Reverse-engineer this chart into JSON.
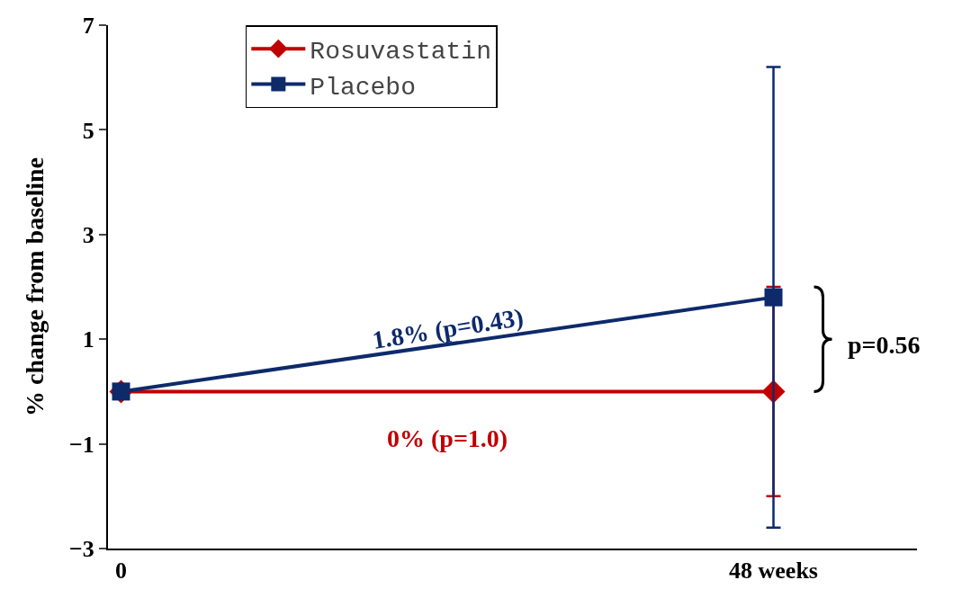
{
  "chart_data": {
    "type": "line",
    "ylabel": "% change from baseline",
    "categories": [
      "0",
      "48 weeks"
    ],
    "series": [
      {
        "name": "Rosuvastatin",
        "color": "#c00000",
        "marker": "diamond",
        "values": [
          0,
          0
        ],
        "errors": [
          null,
          [
            -2,
            2
          ]
        ]
      },
      {
        "name": "Placebo",
        "color": "#0d2a6b",
        "marker": "square",
        "values": [
          0,
          1.8
        ],
        "errors": [
          null,
          [
            -2.6,
            6.2
          ]
        ]
      }
    ],
    "ylim": [
      -3,
      7
    ],
    "yticks": [
      {
        "value": -3,
        "label": "−3"
      },
      {
        "value": -1,
        "label": "−1"
      },
      1,
      3,
      5,
      7
    ],
    "annotations": [
      "0% (p=1.0)",
      "1.8% (p=0.43)",
      "p=0.56"
    ],
    "grid": false,
    "legend": "top left",
    "line_style": "solid"
  }
}
